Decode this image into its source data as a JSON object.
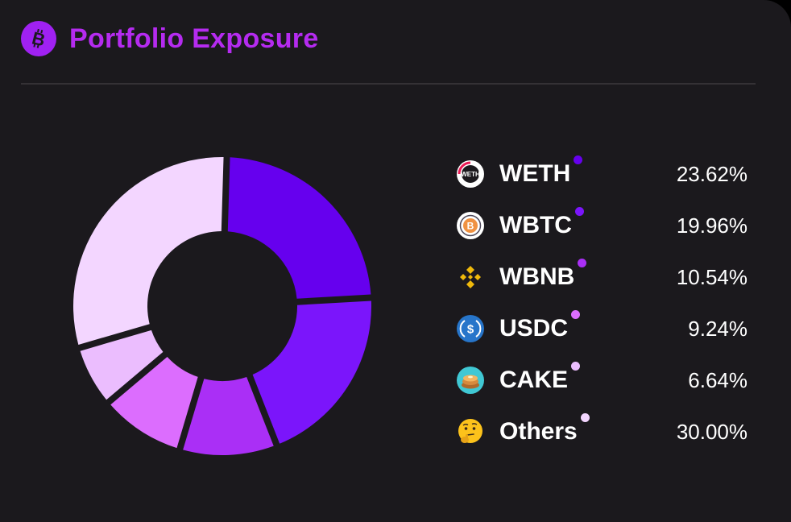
{
  "header": {
    "title": "Portfolio Exposure",
    "icon": "bitcoin-icon"
  },
  "chart_data": {
    "type": "pie",
    "donut": true,
    "categories": [
      "WETH",
      "WBTC",
      "WBNB",
      "USDC",
      "CAKE",
      "Others"
    ],
    "values": [
      23.62,
      19.96,
      10.54,
      9.24,
      6.64,
      30.0
    ],
    "colors": [
      "#6600ee",
      "#7b15fb",
      "#aa2ff6",
      "#dc6dfe",
      "#ebbdfe",
      "#f3d6ff"
    ],
    "legend_placement": "right"
  },
  "legend": [
    {
      "name": "WETH",
      "value": "23.62%",
      "icon": "weth-icon",
      "color": "#6600ee"
    },
    {
      "name": "WBTC",
      "value": "19.96%",
      "icon": "wbtc-icon",
      "color": "#7b15fb"
    },
    {
      "name": "WBNB",
      "value": "10.54%",
      "icon": "wbnb-icon",
      "color": "#aa2ff6"
    },
    {
      "name": "USDC",
      "value": "9.24%",
      "icon": "usdc-icon",
      "color": "#dc6dfe"
    },
    {
      "name": "CAKE",
      "value": "6.64%",
      "icon": "cake-icon",
      "color": "#ebbdfe"
    },
    {
      "name": "Others",
      "value": "30.00%",
      "icon": "thinking-face-icon",
      "color": "#f3d6ff"
    }
  ]
}
